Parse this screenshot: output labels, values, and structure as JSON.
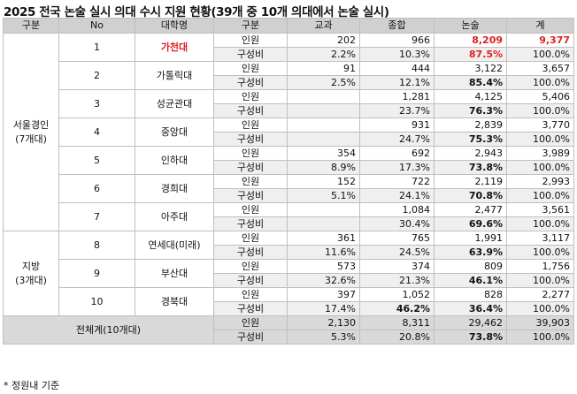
{
  "title": "2025 전국 논술 실시 의대 수시 지원 현황(39개 중 10개 의대에서 논술 실시)",
  "headers": [
    "구분",
    "No",
    "대학명",
    "구분",
    "교과",
    "종합",
    "논술",
    "계"
  ],
  "metric_labels": {
    "count": "인원",
    "ratio": "구성비"
  },
  "groups": [
    {
      "label_line1": "서울경인",
      "label_line2": "(7개대)"
    },
    {
      "label_line1": "지방",
      "label_line2": "(3개대)"
    }
  ],
  "rows": [
    {
      "no": "1",
      "name": "가천대",
      "count": {
        "gyogwa": "202",
        "jonghap": "966",
        "nonsul": "8,209",
        "total": "9,377"
      },
      "ratio": {
        "gyogwa": "2.2%",
        "jonghap": "10.3%",
        "nonsul": "87.5%",
        "total": "100.0%"
      }
    },
    {
      "no": "2",
      "name": "가톨릭대",
      "count": {
        "gyogwa": "91",
        "jonghap": "444",
        "nonsul": "3,122",
        "total": "3,657"
      },
      "ratio": {
        "gyogwa": "2.5%",
        "jonghap": "12.1%",
        "nonsul": "85.4%",
        "total": "100.0%"
      }
    },
    {
      "no": "3",
      "name": "성균관대",
      "count": {
        "gyogwa": "",
        "jonghap": "1,281",
        "nonsul": "4,125",
        "total": "5,406"
      },
      "ratio": {
        "gyogwa": "",
        "jonghap": "23.7%",
        "nonsul": "76.3%",
        "total": "100.0%"
      }
    },
    {
      "no": "4",
      "name": "중앙대",
      "count": {
        "gyogwa": "",
        "jonghap": "931",
        "nonsul": "2,839",
        "total": "3,770"
      },
      "ratio": {
        "gyogwa": "",
        "jonghap": "24.7%",
        "nonsul": "75.3%",
        "total": "100.0%"
      }
    },
    {
      "no": "5",
      "name": "인하대",
      "count": {
        "gyogwa": "354",
        "jonghap": "692",
        "nonsul": "2,943",
        "total": "3,989"
      },
      "ratio": {
        "gyogwa": "8.9%",
        "jonghap": "17.3%",
        "nonsul": "73.8%",
        "total": "100.0%"
      }
    },
    {
      "no": "6",
      "name": "경희대",
      "count": {
        "gyogwa": "152",
        "jonghap": "722",
        "nonsul": "2,119",
        "total": "2,993"
      },
      "ratio": {
        "gyogwa": "5.1%",
        "jonghap": "24.1%",
        "nonsul": "70.8%",
        "total": "100.0%"
      }
    },
    {
      "no": "7",
      "name": "아주대",
      "count": {
        "gyogwa": "",
        "jonghap": "1,084",
        "nonsul": "2,477",
        "total": "3,561"
      },
      "ratio": {
        "gyogwa": "",
        "jonghap": "30.4%",
        "nonsul": "69.6%",
        "total": "100.0%"
      }
    },
    {
      "no": "8",
      "name": "연세대(미래)",
      "count": {
        "gyogwa": "361",
        "jonghap": "765",
        "nonsul": "1,991",
        "total": "3,117"
      },
      "ratio": {
        "gyogwa": "11.6%",
        "jonghap": "24.5%",
        "nonsul": "63.9%",
        "total": "100.0%"
      }
    },
    {
      "no": "9",
      "name": "부산대",
      "count": {
        "gyogwa": "573",
        "jonghap": "374",
        "nonsul": "809",
        "total": "1,756"
      },
      "ratio": {
        "gyogwa": "32.6%",
        "jonghap": "21.3%",
        "nonsul": "46.1%",
        "total": "100.0%"
      }
    },
    {
      "no": "10",
      "name": "경북대",
      "count": {
        "gyogwa": "397",
        "jonghap": "1,052",
        "nonsul": "828",
        "total": "2,277"
      },
      "ratio": {
        "gyogwa": "17.4%",
        "jonghap": "46.2%",
        "nonsul": "36.4%",
        "total": "100.0%"
      }
    }
  ],
  "total_row": {
    "label": "전체계(10개대)",
    "count": {
      "gyogwa": "2,130",
      "jonghap": "8,311",
      "nonsul": "29,462",
      "total": "39,903"
    },
    "ratio": {
      "gyogwa": "5.3%",
      "jonghap": "20.8%",
      "nonsul": "73.8%",
      "total": "100.0%"
    }
  },
  "note": "* 정원내 기준",
  "colors": {
    "header_bg": "#d0d0d0",
    "highlight_red": "#e02020",
    "total_bg": "#d9d9d9"
  }
}
